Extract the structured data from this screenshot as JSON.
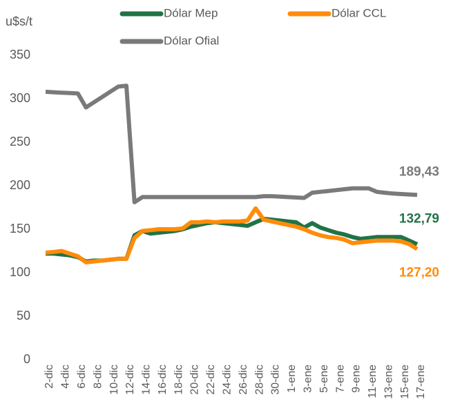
{
  "chart_data": {
    "type": "line",
    "y_label": "u$s/t",
    "categories": [
      "2-dic",
      null,
      "4-dic",
      null,
      "6-dic",
      null,
      "8-dic",
      null,
      "10-dic",
      null,
      "12-dic",
      null,
      "14-dic",
      null,
      "16-dic",
      null,
      "18-dic",
      null,
      "20-dic",
      null,
      "22-dic",
      null,
      "24-dic",
      null,
      "26-dic",
      null,
      "28-dic",
      null,
      "30-dic",
      null,
      "1-ene",
      null,
      "3-ene",
      null,
      "5-ene",
      null,
      "7-ene",
      null,
      "9-ene",
      null,
      "11-ene",
      null,
      "13-ene",
      null,
      "15-ene",
      null,
      "17-ene"
    ],
    "series": [
      {
        "name": "Dólar Mep",
        "color": "#217346",
        "values": [
          122,
          122,
          121,
          120,
          118,
          113,
          114,
          114,
          115,
          116,
          116,
          143,
          148,
          145,
          146,
          147,
          148,
          150,
          153,
          155,
          157,
          158,
          157,
          156,
          155,
          154,
          158,
          162,
          161,
          160,
          159,
          158,
          152,
          157,
          152,
          149,
          146,
          144,
          141,
          139,
          140,
          141,
          141,
          141,
          141,
          137,
          132.79
        ],
        "value_labels": [
          null,
          null,
          null,
          null,
          null,
          null,
          null,
          null,
          null,
          null,
          null,
          null,
          null,
          null,
          null,
          null,
          null,
          null,
          null,
          null,
          null,
          null,
          null,
          null,
          null,
          null,
          null,
          null,
          null,
          null,
          null,
          null,
          null,
          null,
          null,
          null,
          null,
          null,
          null,
          null,
          null,
          null,
          null,
          null,
          null,
          null,
          "132,79"
        ]
      },
      {
        "name": "Dólar CCL",
        "color": "#ff8c0a",
        "values": [
          123,
          124,
          125,
          122,
          119,
          112,
          113,
          114,
          115,
          116,
          116,
          140,
          148,
          149,
          150,
          150,
          150,
          151,
          158,
          158,
          159,
          158,
          159,
          159,
          159,
          160,
          174,
          161,
          159,
          157,
          155,
          153,
          150,
          146,
          143,
          141,
          140,
          138,
          134,
          135,
          136,
          137,
          137,
          137,
          136,
          133,
          127.2
        ],
        "value_labels": [
          null,
          null,
          null,
          null,
          null,
          null,
          null,
          null,
          null,
          null,
          null,
          null,
          null,
          null,
          null,
          null,
          null,
          null,
          null,
          null,
          null,
          null,
          null,
          null,
          null,
          null,
          null,
          null,
          null,
          null,
          null,
          null,
          null,
          null,
          null,
          null,
          null,
          null,
          null,
          null,
          null,
          null,
          null,
          null,
          null,
          null,
          "127,20"
        ]
      },
      {
        "name": "Dólar Ofial",
        "color": "#7a7a7a",
        "values": [
          308,
          307.5,
          307,
          306.5,
          306,
          290,
          296,
          302,
          308,
          314,
          315,
          181,
          187,
          187,
          187,
          187,
          187,
          187,
          187,
          187,
          187,
          187,
          187,
          187,
          187,
          187,
          187,
          188,
          188,
          187.5,
          187,
          186.5,
          186,
          192,
          193,
          194,
          195,
          196,
          197,
          197,
          197,
          193,
          192,
          191,
          190.5,
          190,
          189.43
        ],
        "value_labels": [
          null,
          null,
          null,
          null,
          null,
          null,
          null,
          null,
          null,
          null,
          null,
          null,
          null,
          null,
          null,
          null,
          null,
          null,
          null,
          null,
          null,
          null,
          null,
          null,
          null,
          null,
          null,
          null,
          null,
          null,
          null,
          null,
          null,
          null,
          null,
          null,
          null,
          null,
          null,
          null,
          null,
          null,
          null,
          null,
          null,
          null,
          "189,43"
        ]
      }
    ],
    "ylim": [
      0,
      350
    ],
    "yticks": [
      0,
      50,
      100,
      150,
      200,
      250,
      300,
      350
    ]
  }
}
